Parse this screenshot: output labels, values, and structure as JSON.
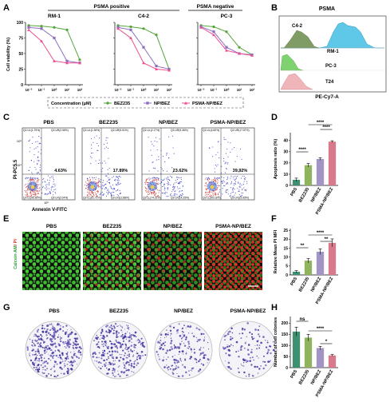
{
  "panels": {
    "A": {
      "label": "A",
      "group_positive": "PSMA positive",
      "group_negative": "PSMA negative",
      "ylabel": "Cell viability (%)",
      "legend_concentration": "Concentration (μM)",
      "legend_items": [
        "BEZ235",
        "NP/BEZ",
        "PSMA-NP/BEZ"
      ],
      "xticks": [
        "10⁻²",
        "10⁻¹",
        "10⁰",
        "10¹",
        "10²"
      ],
      "yticks": [
        "0",
        "25",
        "50",
        "75",
        "100"
      ]
    },
    "B": {
      "label": "B",
      "title": "PSMA",
      "xlabel": "PE-Cy7-A",
      "lanes": [
        "C4-2",
        "RM-1",
        "PC-3",
        "T24"
      ]
    },
    "C": {
      "label": "C",
      "ylabel": "PI-PC5.5",
      "xlabel": "Annexin V-FITC",
      "tick_labels": [
        "10⁵",
        "10⁴",
        "10⁵"
      ],
      "plots": [
        {
          "title": "PBS",
          "q1": "Q2-UL(1.75%)",
          "q2": "Q2-UR(2.56%)",
          "q3": "Q2-LL(95.60%)",
          "q4": "Q2-LR(2.04%)",
          "apop": "4.63%"
        },
        {
          "title": "BEZ235",
          "q1": "Q2-UL(1.36%)",
          "q2": "Q2-UR(5.51%)",
          "q3": "Q2-LL(81.71%)",
          "q4": "Q2-LR(12.88%)",
          "apop": "17.89%"
        },
        {
          "title": "NP/BEZ",
          "q1": "Q2-UL(2.17%)",
          "q2": "Q2-UR(9.36%)",
          "q3": "Q2-LL(74.21%)",
          "q4": "Q2-LR(14.25%)",
          "apop": "23.62%"
        },
        {
          "title": "PSMA-NP/BEZ",
          "q1": "Q2-UL(4.60%)",
          "q2": "Q2-UR(17.57%)",
          "q3": "Q2-LL(55.18%)",
          "q4": "Q2-LR(22.95%)",
          "apop": "39.92%"
        }
      ]
    },
    "D": {
      "label": "D",
      "sig": [
        "****",
        "****",
        "****"
      ]
    },
    "E": {
      "label": "E",
      "ylabel_green": "Calcein AM",
      "ylabel_red": "/ PI",
      "titles": [
        "PBS",
        "BEZ235",
        "NP/BEZ",
        "PSMA-NP/BEZ"
      ]
    },
    "F": {
      "label": "F",
      "sig": [
        "**",
        "****",
        "**"
      ]
    },
    "G": {
      "label": "G",
      "titles": [
        "PBS",
        "BEZ235",
        "NP/BEZ",
        "PSMA-NP/BEZ"
      ]
    },
    "H": {
      "label": "H",
      "sig": [
        "ns",
        "****",
        "*"
      ]
    }
  },
  "colors": {
    "pbs": "#3d9170",
    "bez": "#8fb35e",
    "np": "#a394c6",
    "psma": "#d97a8c",
    "bez_line": "#55a53a",
    "np_line": "#8d6fc2",
    "psma_line": "#ee4d8f"
  },
  "chart_data": [
    {
      "type": "line",
      "name": "RM-1",
      "title": "RM-1",
      "x": [
        0.01,
        0.1,
        1,
        10,
        100
      ],
      "series": [
        {
          "name": "BEZ235",
          "values": [
            95,
            94,
            92,
            88,
            40
          ]
        },
        {
          "name": "NP/BEZ",
          "values": [
            92,
            90,
            75,
            38,
            35
          ]
        },
        {
          "name": "PSMA-NP/BEZ",
          "values": [
            88,
            70,
            38,
            35,
            35
          ]
        }
      ],
      "ylim": [
        0,
        100
      ]
    },
    {
      "type": "line",
      "name": "C4-2",
      "title": "C4-2",
      "x": [
        0.01,
        0.1,
        1,
        10,
        100
      ],
      "series": [
        {
          "name": "BEZ235",
          "values": [
            95,
            93,
            90,
            80,
            25
          ]
        },
        {
          "name": "NP/BEZ",
          "values": [
            92,
            88,
            60,
            30,
            25
          ]
        },
        {
          "name": "PSMA-NP/BEZ",
          "values": [
            90,
            75,
            35,
            25,
            23
          ]
        }
      ],
      "ylim": [
        0,
        100
      ]
    },
    {
      "type": "line",
      "name": "PC-3",
      "title": "PC-3",
      "x": [
        0.01,
        0.1,
        1,
        10,
        100
      ],
      "series": [
        {
          "name": "BEZ235",
          "values": [
            95,
            93,
            85,
            60,
            48
          ]
        },
        {
          "name": "NP/BEZ",
          "values": [
            93,
            85,
            60,
            50,
            48
          ]
        },
        {
          "name": "PSMA-NP/BEZ",
          "values": [
            92,
            80,
            55,
            50,
            47
          ]
        }
      ],
      "ylim": [
        0,
        100
      ]
    },
    {
      "type": "bar",
      "name": "D",
      "ylabel": "Apoptosis ratio (%)",
      "categories": [
        "PBS",
        "BEZ235",
        "NP/BEZ",
        "PSMA-NP/BEZ"
      ],
      "values": [
        5,
        18,
        23.5,
        39
      ],
      "errors": [
        1.5,
        1.5,
        1.2,
        0.8
      ],
      "yticks": [
        0,
        10,
        20,
        30,
        40
      ],
      "ylim": [
        0,
        47
      ]
    },
    {
      "type": "bar",
      "name": "F",
      "ylabel": "Relative Mean PI MFI",
      "categories": [
        "PBS",
        "BEZ235",
        "NP/BEZ",
        "PSMA-NP/BEZ"
      ],
      "values": [
        1.8,
        8,
        13,
        18
      ],
      "errors": [
        0.6,
        1.2,
        1.6,
        2.2
      ],
      "yticks": [
        0,
        5,
        10,
        15,
        20,
        25
      ],
      "ylim": [
        0,
        26
      ]
    },
    {
      "type": "bar",
      "name": "H",
      "ylabel": "Number of cell colonies",
      "categories": [
        "PBS",
        "BEZ235",
        "NP/BEZ",
        "PSMA-NP/BEZ"
      ],
      "values": [
        162,
        135,
        88,
        55
      ],
      "errors": [
        20,
        15,
        8,
        4
      ],
      "yticks": [
        0,
        50,
        100,
        150,
        200
      ],
      "ylim": [
        0,
        230
      ]
    }
  ]
}
